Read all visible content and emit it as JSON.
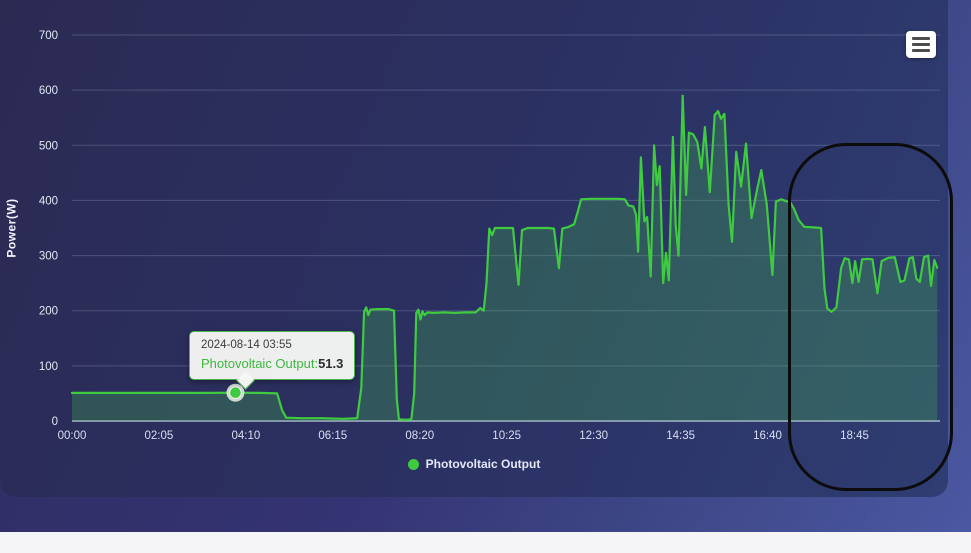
{
  "y_axis": {
    "title": "Power(W)"
  },
  "tooltip": {
    "date": "2024-08-14 03:55",
    "series_label": "Photovoltaic Output:",
    "value": "51.3"
  },
  "legend": {
    "label": "Photovoltaic Output"
  },
  "export_menu": {
    "icon": "hamburger-menu-icon"
  },
  "colors": {
    "line": "#3fcb3f",
    "area_fill": "rgba(70,198,78,0.26)",
    "tooltip_border": "#4db34d",
    "annotation_stroke": "#0c0c0c",
    "panel_background": "#2b3163",
    "axis_text": "#dfe5f6"
  },
  "chart_data": {
    "type": "area",
    "title": "",
    "xlabel": "",
    "ylabel": "Power(W)",
    "grid": "horizontal",
    "legend_position": "bottom-center",
    "ylim": [
      0,
      700
    ],
    "xlim_minutes": [
      0,
      1248
    ],
    "y_ticks": [
      0,
      100,
      200,
      300,
      400,
      500,
      600,
      700
    ],
    "x_tick_labels": [
      "00:00",
      "02:05",
      "04:10",
      "06:15",
      "08:20",
      "10:25",
      "12:30",
      "14:35",
      "16:40",
      "18:45"
    ],
    "x_tick_minutes": [
      0,
      125,
      250,
      375,
      500,
      625,
      750,
      875,
      1000,
      1125
    ],
    "highlighted_point": {
      "time": "03:55",
      "value": 51.3
    },
    "annotation": {
      "shape": "hand-drawn-rounded-ellipse",
      "x_range_minutes": [
        1029,
        1266
      ],
      "y_range_w": [
        -127,
        504
      ]
    },
    "series": [
      {
        "name": "Photovoltaic Output",
        "color": "#3fcb3f",
        "fill": "rgba(70,198,78,0.26)",
        "points": [
          [
            "00:00",
            51
          ],
          [
            "00:40",
            51
          ],
          [
            "01:20",
            51
          ],
          [
            "02:00",
            51
          ],
          [
            "02:40",
            51
          ],
          [
            "03:20",
            51
          ],
          [
            "03:55",
            51.3
          ],
          [
            "04:30",
            51
          ],
          [
            "04:55",
            50
          ],
          [
            "05:02",
            20
          ],
          [
            "05:08",
            6
          ],
          [
            "05:30",
            5
          ],
          [
            "06:00",
            5
          ],
          [
            "06:30",
            4
          ],
          [
            "06:50",
            5
          ],
          [
            "06:56",
            60
          ],
          [
            "07:00",
            198
          ],
          [
            "07:03",
            206
          ],
          [
            "07:06",
            192
          ],
          [
            "07:09",
            202
          ],
          [
            "07:20",
            203
          ],
          [
            "07:35",
            203
          ],
          [
            "07:43",
            200
          ],
          [
            "07:47",
            40
          ],
          [
            "07:50",
            3
          ],
          [
            "08:00",
            2
          ],
          [
            "08:08",
            3
          ],
          [
            "08:12",
            50
          ],
          [
            "08:15",
            196
          ],
          [
            "08:18",
            202
          ],
          [
            "08:21",
            184
          ],
          [
            "08:24",
            199
          ],
          [
            "08:27",
            192
          ],
          [
            "08:31",
            197
          ],
          [
            "08:40",
            196
          ],
          [
            "08:55",
            197
          ],
          [
            "09:10",
            196
          ],
          [
            "09:25",
            197
          ],
          [
            "09:40",
            197
          ],
          [
            "09:47",
            205
          ],
          [
            "09:52",
            200
          ],
          [
            "09:56",
            250
          ],
          [
            "10:00",
            349
          ],
          [
            "10:04",
            337
          ],
          [
            "10:08",
            350
          ],
          [
            "10:20",
            350
          ],
          [
            "10:34",
            350
          ],
          [
            "10:42",
            247
          ],
          [
            "10:47",
            346
          ],
          [
            "10:55",
            350
          ],
          [
            "11:10",
            350
          ],
          [
            "11:25",
            350
          ],
          [
            "11:33",
            349
          ],
          [
            "11:40",
            277
          ],
          [
            "11:45",
            349
          ],
          [
            "11:54",
            352
          ],
          [
            "12:02",
            357
          ],
          [
            "12:08",
            383
          ],
          [
            "12:12",
            402
          ],
          [
            "12:25",
            403
          ],
          [
            "12:45",
            403
          ],
          [
            "13:05",
            403
          ],
          [
            "13:15",
            402
          ],
          [
            "13:20",
            391
          ],
          [
            "13:27",
            389
          ],
          [
            "13:31",
            374
          ],
          [
            "13:34",
            307
          ],
          [
            "13:38",
            478
          ],
          [
            "13:43",
            362
          ],
          [
            "13:47",
            370
          ],
          [
            "13:52",
            262
          ],
          [
            "13:57",
            500
          ],
          [
            "14:01",
            428
          ],
          [
            "14:05",
            462
          ],
          [
            "14:10",
            250
          ],
          [
            "14:14",
            305
          ],
          [
            "14:18",
            255
          ],
          [
            "14:24",
            515
          ],
          [
            "14:28",
            355
          ],
          [
            "14:32",
            300
          ],
          [
            "14:38",
            590
          ],
          [
            "14:43",
            410
          ],
          [
            "14:47",
            523
          ],
          [
            "14:53",
            520
          ],
          [
            "14:59",
            506
          ],
          [
            "15:05",
            458
          ],
          [
            "15:10",
            533
          ],
          [
            "15:17",
            415
          ],
          [
            "15:24",
            555
          ],
          [
            "15:29",
            562
          ],
          [
            "15:33",
            548
          ],
          [
            "15:38",
            557
          ],
          [
            "15:44",
            392
          ],
          [
            "15:49",
            325
          ],
          [
            "15:55",
            488
          ],
          [
            "16:02",
            425
          ],
          [
            "16:09",
            503
          ],
          [
            "16:17",
            368
          ],
          [
            "16:25",
            420
          ],
          [
            "16:31",
            455
          ],
          [
            "16:39",
            392
          ],
          [
            "16:47",
            265
          ],
          [
            "16:52",
            398
          ],
          [
            "17:00",
            402
          ],
          [
            "17:08",
            398
          ],
          [
            "17:13",
            396
          ],
          [
            "17:18",
            385
          ],
          [
            "17:25",
            364
          ],
          [
            "17:33",
            352
          ],
          [
            "17:46",
            351
          ],
          [
            "17:57",
            350
          ],
          [
            "18:02",
            240
          ],
          [
            "18:06",
            204
          ],
          [
            "18:12",
            198
          ],
          [
            "18:19",
            206
          ],
          [
            "18:26",
            278
          ],
          [
            "18:31",
            295
          ],
          [
            "18:37",
            293
          ],
          [
            "18:42",
            250
          ],
          [
            "18:46",
            290
          ],
          [
            "18:51",
            252
          ],
          [
            "18:56",
            293
          ],
          [
            "19:04",
            294
          ],
          [
            "19:11",
            293
          ],
          [
            "19:18",
            232
          ],
          [
            "19:24",
            290
          ],
          [
            "19:34",
            296
          ],
          [
            "19:43",
            297
          ],
          [
            "19:51",
            252
          ],
          [
            "19:57",
            255
          ],
          [
            "20:04",
            295
          ],
          [
            "20:09",
            297
          ],
          [
            "20:14",
            258
          ],
          [
            "20:19",
            252
          ],
          [
            "20:25",
            297
          ],
          [
            "20:31",
            300
          ],
          [
            "20:35",
            245
          ],
          [
            "20:40",
            292
          ],
          [
            "20:44",
            278
          ]
        ]
      }
    ]
  }
}
